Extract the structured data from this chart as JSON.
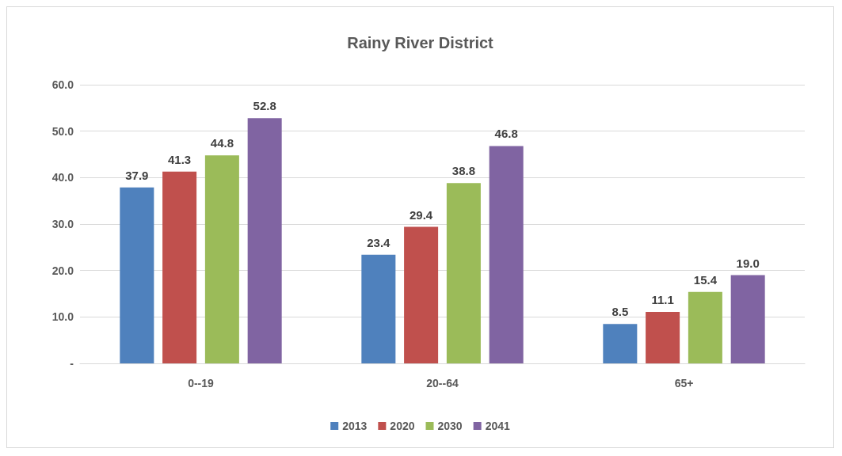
{
  "chart_data": {
    "type": "bar",
    "title": "Rainy River District",
    "categories": [
      "0--19",
      "20--64",
      "65+"
    ],
    "series": [
      {
        "name": "2013",
        "color": "#4f81bd",
        "values": [
          37.9,
          23.4,
          8.5
        ],
        "value_labels": [
          "37.9",
          "23.4",
          "8.5"
        ]
      },
      {
        "name": "2020",
        "color": "#c0504d",
        "values": [
          41.3,
          29.4,
          11.1
        ],
        "value_labels": [
          "41.3",
          "29.4",
          "11.1"
        ]
      },
      {
        "name": "2030",
        "color": "#9bbb59",
        "values": [
          44.8,
          38.8,
          15.4
        ],
        "value_labels": [
          "44.8",
          "38.8",
          "15.4"
        ]
      },
      {
        "name": "2041",
        "color": "#8064a2",
        "values": [
          52.8,
          46.8,
          19
        ],
        "value_labels": [
          "52.8",
          "46.8",
          "19.0"
        ]
      }
    ],
    "ylim": [
      0,
      60
    ],
    "yticks": [
      {
        "value": 0,
        "label": "-"
      },
      {
        "value": 10,
        "label": "10.0"
      },
      {
        "value": 20,
        "label": "20.0"
      },
      {
        "value": 30,
        "label": "30.0"
      },
      {
        "value": 40,
        "label": "40.0"
      },
      {
        "value": 50,
        "label": "50.0"
      },
      {
        "value": 60,
        "label": "60.0"
      }
    ],
    "grid": "y",
    "legend": "bottom"
  }
}
